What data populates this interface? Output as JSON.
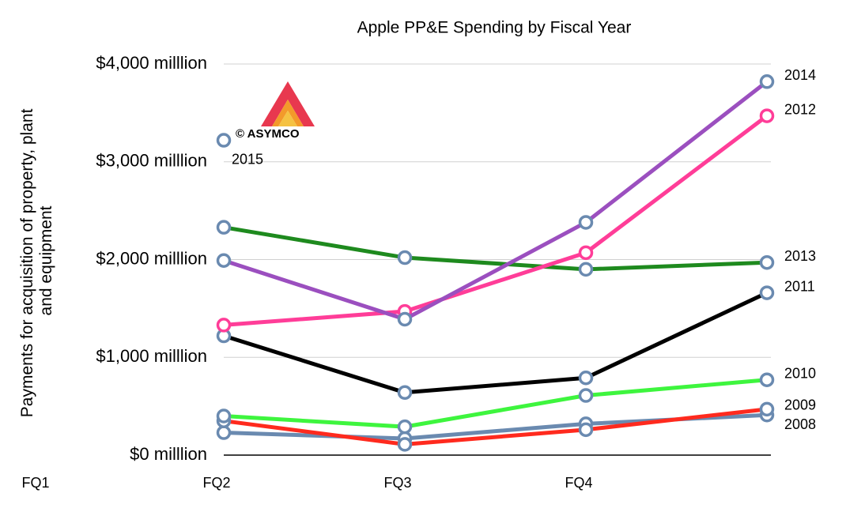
{
  "chart_data": {
    "type": "line",
    "title": "Apple PP&E Spending by Fiscal Year",
    "y_label": "Payments for acquisition of property, plant and equipment",
    "watermark": "© ASYMCO",
    "categories": [
      "FQ1",
      "FQ2",
      "FQ3",
      "FQ4"
    ],
    "ylim": [
      0,
      4000
    ],
    "yticks": [
      {
        "value": 0,
        "label": "$0 milllion"
      },
      {
        "value": 1000,
        "label": "$1,000 milllion"
      },
      {
        "value": 2000,
        "label": "$2,000 milllion"
      },
      {
        "value": 3000,
        "label": "$3,000 milllion"
      },
      {
        "value": 4000,
        "label": "$4,000 milllion"
      }
    ],
    "grid": true,
    "marker_color": "#6a8ab0",
    "series": [
      {
        "name": "2008",
        "color": "#6a8ab0",
        "values": [
          230,
          170,
          320,
          410
        ]
      },
      {
        "name": "2009",
        "color": "#ff2a1e",
        "values": [
          350,
          110,
          260,
          470
        ]
      },
      {
        "name": "2010",
        "color": "#3ef53e",
        "values": [
          400,
          290,
          610,
          770
        ]
      },
      {
        "name": "2011",
        "color": "#000000",
        "values": [
          1220,
          640,
          790,
          1660
        ]
      },
      {
        "name": "2013",
        "color": "#1e8a1e",
        "values": [
          2330,
          2020,
          1900,
          1970
        ]
      },
      {
        "name": "2012",
        "color": "#ff3d98",
        "values": [
          1330,
          1470,
          2070,
          3470
        ]
      },
      {
        "name": "2014",
        "color": "#9b4fbf",
        "values": [
          1990,
          1390,
          2380,
          3820
        ]
      },
      {
        "name": "2015",
        "color": "#6a8ab0",
        "values": [
          3220,
          null,
          null,
          null
        ]
      }
    ]
  }
}
